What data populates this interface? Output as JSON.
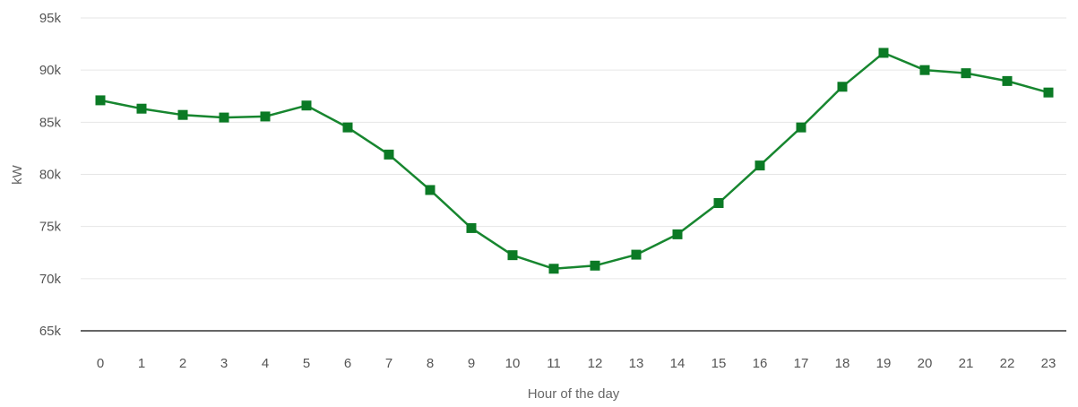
{
  "chart_data": {
    "type": "line",
    "title": "",
    "xlabel": "Hour of the day",
    "ylabel": "kW",
    "categories": [
      "0",
      "1",
      "2",
      "3",
      "4",
      "5",
      "6",
      "7",
      "8",
      "9",
      "10",
      "11",
      "12",
      "13",
      "14",
      "15",
      "16",
      "17",
      "18",
      "19",
      "20",
      "21",
      "22",
      "23"
    ],
    "series": [
      {
        "values": [
          87100,
          86300,
          85700,
          85450,
          85550,
          86600,
          84500,
          81900,
          78500,
          74850,
          72250,
          70950,
          71250,
          72300,
          74250,
          77250,
          80850,
          84500,
          88400,
          91650,
          90000,
          89700,
          88950,
          87850
        ],
        "color": "#17862f",
        "marker": "square"
      }
    ],
    "yticks": [
      {
        "value": 65000,
        "label": "65k"
      },
      {
        "value": 70000,
        "label": "70k"
      },
      {
        "value": 75000,
        "label": "75k"
      },
      {
        "value": 80000,
        "label": "80k"
      },
      {
        "value": 85000,
        "label": "85k"
      },
      {
        "value": 90000,
        "label": "90k"
      },
      {
        "value": 95000,
        "label": "95k"
      }
    ],
    "ylim": [
      65000,
      95000
    ],
    "grid": true,
    "legend": "none",
    "colors": {
      "line": "#17862f",
      "marker": "#0b7a25",
      "grid": "#e6e6e6",
      "axis": "#333333"
    }
  }
}
